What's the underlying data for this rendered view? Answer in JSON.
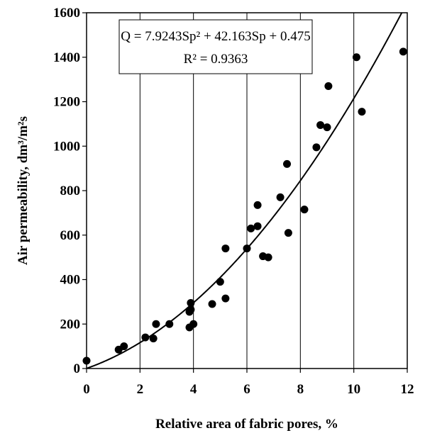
{
  "chart_data": {
    "type": "scatter",
    "xlabel": "Relative area of fabric pores, %",
    "ylabel": "Air permeability, dm³/m²s",
    "xlim": [
      0,
      12
    ],
    "ylim": [
      0,
      1600
    ],
    "xticks": [
      "0",
      "2",
      "4",
      "6",
      "8",
      "10",
      "12"
    ],
    "yticks": [
      "0",
      "200",
      "400",
      "600",
      "800",
      "1000",
      "1200",
      "1400",
      "1600"
    ],
    "grid": "vertical",
    "equation": {
      "line1": "Q = 7.9243Sp² + 42.163Sp + 0.475",
      "line2": "R² = 0.9363",
      "a": 7.9243,
      "b": 42.163,
      "c": 0.475
    },
    "points": [
      {
        "x": 0.0,
        "y": 35
      },
      {
        "x": 1.2,
        "y": 85
      },
      {
        "x": 1.4,
        "y": 100
      },
      {
        "x": 2.2,
        "y": 140
      },
      {
        "x": 2.5,
        "y": 135
      },
      {
        "x": 2.6,
        "y": 200
      },
      {
        "x": 3.1,
        "y": 200
      },
      {
        "x": 3.85,
        "y": 185
      },
      {
        "x": 3.85,
        "y": 255
      },
      {
        "x": 3.9,
        "y": 265
      },
      {
        "x": 3.9,
        "y": 295
      },
      {
        "x": 4.0,
        "y": 200
      },
      {
        "x": 4.7,
        "y": 290
      },
      {
        "x": 5.0,
        "y": 390
      },
      {
        "x": 5.2,
        "y": 315
      },
      {
        "x": 5.2,
        "y": 540
      },
      {
        "x": 6.0,
        "y": 540
      },
      {
        "x": 6.15,
        "y": 630
      },
      {
        "x": 6.4,
        "y": 735
      },
      {
        "x": 6.4,
        "y": 640
      },
      {
        "x": 6.6,
        "y": 505
      },
      {
        "x": 6.8,
        "y": 500
      },
      {
        "x": 7.25,
        "y": 770
      },
      {
        "x": 7.5,
        "y": 920
      },
      {
        "x": 7.55,
        "y": 610
      },
      {
        "x": 8.15,
        "y": 715
      },
      {
        "x": 8.6,
        "y": 995
      },
      {
        "x": 8.75,
        "y": 1095
      },
      {
        "x": 9.0,
        "y": 1085
      },
      {
        "x": 9.05,
        "y": 1270
      },
      {
        "x": 10.1,
        "y": 1400
      },
      {
        "x": 10.3,
        "y": 1155
      },
      {
        "x": 11.85,
        "y": 1425
      }
    ]
  }
}
